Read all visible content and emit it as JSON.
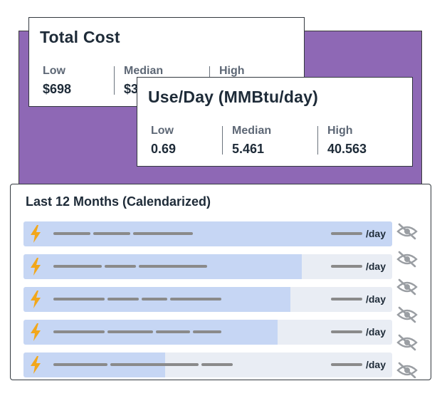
{
  "total_cost": {
    "title": "Total Cost",
    "low_label": "Low",
    "low_value": "$698",
    "median_label": "Median",
    "median_value": "$3",
    "high_label": "High"
  },
  "use_per_day": {
    "title": "Use/Day (MMBtu/day)",
    "low_label": "Low",
    "low_value": "0.69",
    "median_label": "Median",
    "median_value": "5.461",
    "high_label": "High",
    "high_value": "40.563"
  },
  "history": {
    "title": "Last 12 Months (Calendarized)",
    "unit": "/day",
    "rows": [
      {
        "fill": 1.0
      },
      {
        "fill": 0.754
      },
      {
        "fill": 0.724
      },
      {
        "fill": 0.69
      },
      {
        "fill": 0.385
      }
    ]
  },
  "colors": {
    "accent": "#8e68b5",
    "bar_fill": "#c6d6f4",
    "bar_track": "#e9edf4",
    "bolt": "#f2a71b"
  },
  "icons": {
    "row_icon": "lightning-bolt-icon",
    "hide_icon": "eye-slash-icon"
  }
}
